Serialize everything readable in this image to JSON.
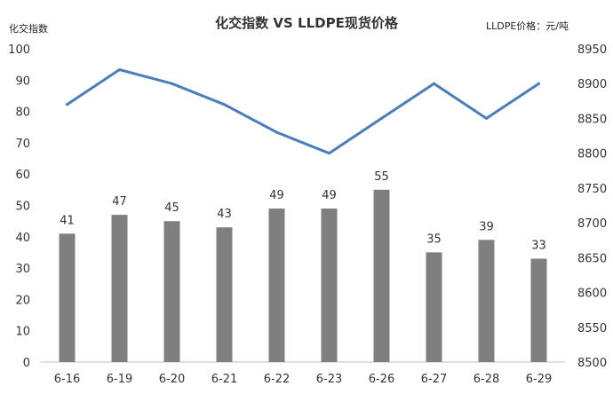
{
  "chart_data": {
    "type": "bar",
    "title": "化交指数 VS LLDPE现货价格",
    "ylabel_left": "化交指数",
    "ylabel_right": "LLDPE价格：元/吨",
    "categories": [
      "6-16",
      "6-19",
      "6-20",
      "6-21",
      "6-22",
      "6-23",
      "6-26",
      "6-27",
      "6-28",
      "6-29"
    ],
    "series": [
      {
        "type": "bar",
        "axis": "left",
        "values": [
          41,
          47,
          45,
          43,
          49,
          49,
          55,
          35,
          39,
          33
        ],
        "color": "#7f7f7f"
      },
      {
        "type": "line",
        "axis": "right",
        "values": [
          8870,
          8920,
          8900,
          8870,
          8830,
          8800,
          8850,
          8900,
          8850,
          8900
        ],
        "color": "#4a7ebb"
      }
    ],
    "data_labels": [
      "41",
      "47",
      "45",
      "43",
      "49",
      "49",
      "55",
      "35",
      "39",
      "33"
    ],
    "ylim_left": [
      0,
      100
    ],
    "yticks_left": [
      "0",
      "10",
      "20",
      "30",
      "40",
      "50",
      "60",
      "70",
      "80",
      "90",
      "100"
    ],
    "ylim_right": [
      8500,
      8950
    ],
    "yticks_right": [
      "8500",
      "8550",
      "8600",
      "8650",
      "8700",
      "8750",
      "8800",
      "8850",
      "8900",
      "8950"
    ],
    "grid": false,
    "legend": "none"
  }
}
